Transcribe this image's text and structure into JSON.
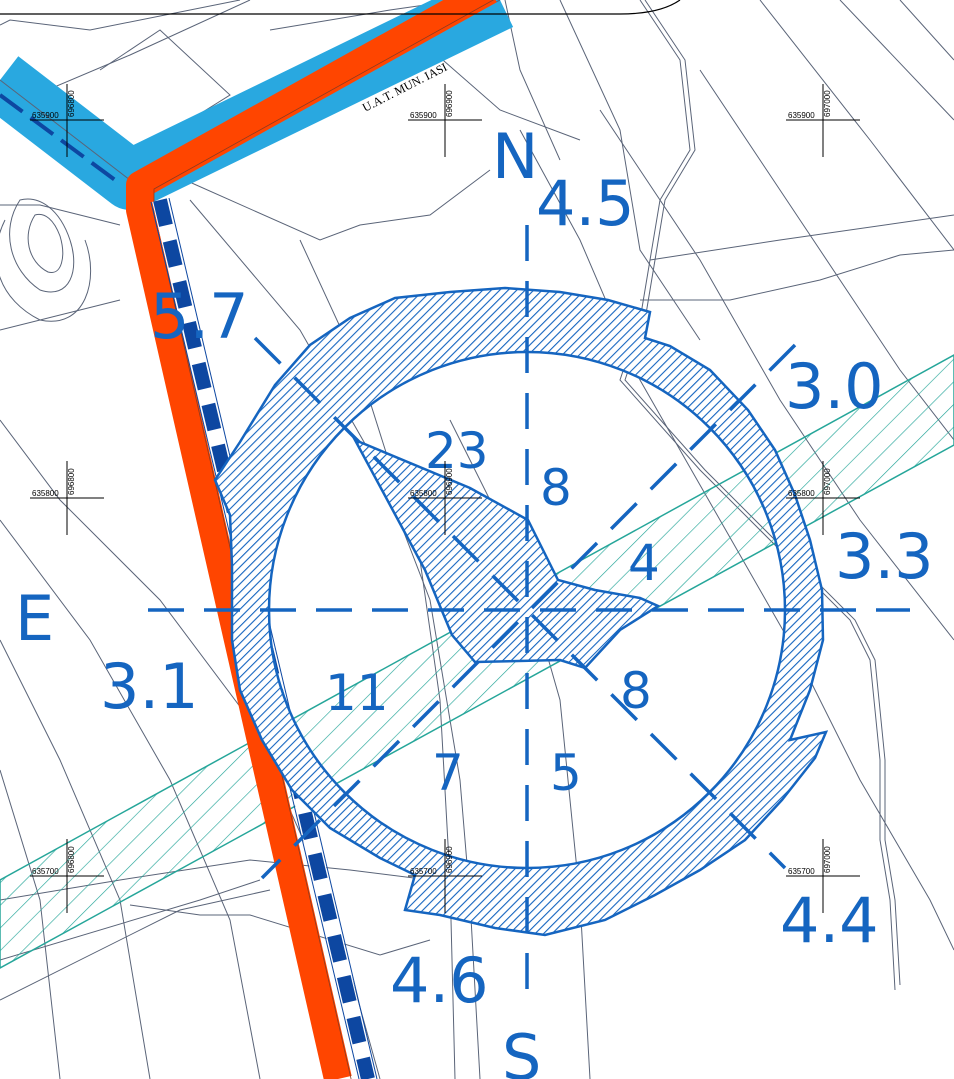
{
  "map": {
    "uat_label": "U.A.T. MUN. IASI",
    "colors": {
      "wind_rose": "#1565c0",
      "hatch_band": "#26a69a",
      "road_red": "#ff4500",
      "road_blue": "#29a8e0",
      "railway": "#0d47a1",
      "cadastral_lines": "#5a6478"
    }
  },
  "wind_rose": {
    "cardinals": {
      "north": "N",
      "south": "S",
      "east": "E"
    },
    "calm_center": "4",
    "ring_values": {
      "n": "4.5",
      "ne": "3.0",
      "e": "3.3",
      "se": "4.4",
      "s": "4.6",
      "sw": "3.1",
      "nw": "5.7"
    },
    "inner_values": {
      "n": "8",
      "nw": "23",
      "se": "8",
      "s": "5",
      "sw": "7",
      "w": "11"
    }
  },
  "grid": {
    "labels": {
      "e635900": "635900",
      "e635800": "635800",
      "e635700": "635700",
      "n696800": "696800",
      "n696900": "696900",
      "n697000": "697000"
    }
  }
}
